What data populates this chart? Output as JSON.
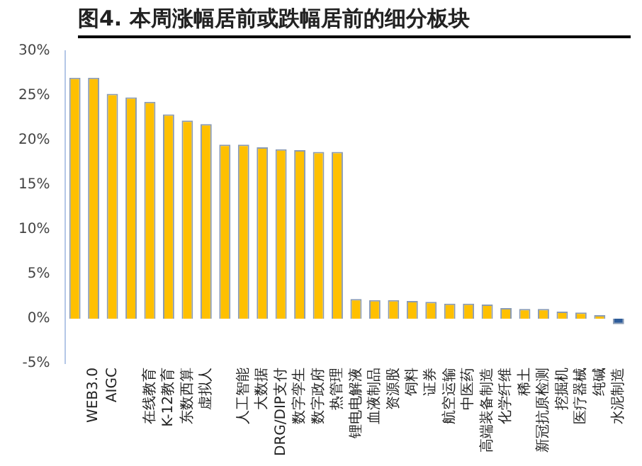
{
  "chart_data": {
    "type": "bar",
    "title": "图4. 本周涨幅居前或跌幅居前的细分板块",
    "categories": [
      null,
      "WEB3.0",
      "AIGC",
      null,
      "在线教育",
      "K-12教育",
      "东数西算",
      "虚拟人",
      null,
      "人工智能",
      "大数据",
      "DRG/DIP支付",
      "数字孪生",
      "数字政府",
      "热管理",
      "锂电电解液",
      "血液制品",
      "资源股",
      "饲料",
      "证券",
      "航空运输",
      "中医药",
      "高端装备制造",
      "化学纤维",
      "稀土",
      "新冠抗原检测",
      "挖掘机",
      "医疗器械",
      "纯碱",
      "水泥制造"
    ],
    "values": [
      27.0,
      27.0,
      25.2,
      24.8,
      24.3,
      22.9,
      22.2,
      21.8,
      19.5,
      19.5,
      19.2,
      19.0,
      18.9,
      18.7,
      18.7,
      2.2,
      2.1,
      2.1,
      2.0,
      1.9,
      1.7,
      1.7,
      1.6,
      1.2,
      1.1,
      1.1,
      0.8,
      0.7,
      0.4,
      -0.6
    ],
    "colors": [
      "#ffc000",
      "#ffc000",
      "#ffc000",
      "#ffc000",
      "#ffc000",
      "#ffc000",
      "#ffc000",
      "#ffc000",
      "#ffc000",
      "#ffc000",
      "#ffc000",
      "#ffc000",
      "#ffc000",
      "#ffc000",
      "#ffc000",
      "#ffc000",
      "#ffc000",
      "#ffc000",
      "#ffc000",
      "#ffc000",
      "#ffc000",
      "#ffc000",
      "#ffc000",
      "#ffc000",
      "#ffc000",
      "#ffc000",
      "#ffc000",
      "#ffc000",
      "#ffc000",
      "#2e5c9a"
    ],
    "ylim": [
      -5,
      30
    ],
    "yticks": [
      {
        "value": -5,
        "label": "-5%"
      },
      {
        "value": 0,
        "label": "0%"
      },
      {
        "value": 5,
        "label": "5%"
      },
      {
        "value": 10,
        "label": "10%"
      },
      {
        "value": 15,
        "label": "15%"
      },
      {
        "value": 20,
        "label": "20%"
      },
      {
        "value": 25,
        "label": "25%"
      },
      {
        "value": 30,
        "label": "30%"
      }
    ],
    "grid": false,
    "legend": false
  }
}
